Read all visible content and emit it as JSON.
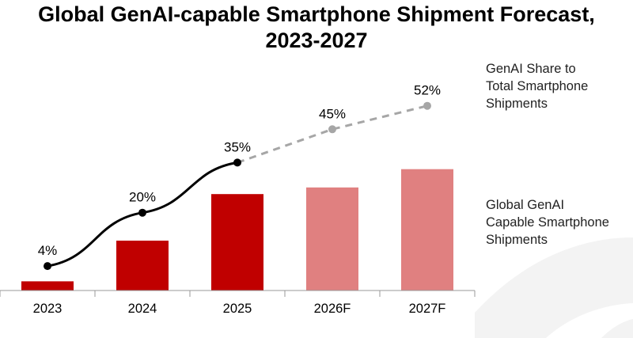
{
  "chart_data": {
    "type": "bar+line",
    "title_line1": "Global GenAI-capable Smartphone Shipment Forecast,",
    "title_line2": "2023-2027",
    "categories": [
      "2023",
      "2024",
      "2025",
      "2026F",
      "2027F"
    ],
    "bar_series": {
      "name": "Global GenAI Capable Smartphone Shipments",
      "values": [
        5.5,
        30,
        58,
        62,
        73
      ],
      "actual_color": "#c00000",
      "forecast_color": "#e08080",
      "forecast_from_index": 3
    },
    "line_series": {
      "name": "GenAI Share to Total Smartphone Shipments",
      "values": [
        4,
        20,
        35,
        45,
        52
      ],
      "labels": [
        "4%",
        "20%",
        "35%",
        "45%",
        "52%"
      ],
      "actual_color": "#000000",
      "forecast_color": "#a6a6a6",
      "forecast_from_index": 3
    },
    "legend": {
      "line_label": [
        "GenAI Share to",
        "Total Smartphone",
        "Shipments"
      ],
      "bar_label": [
        "Global GenAI",
        "Capable Smartphone",
        "Shipments"
      ]
    },
    "legend_position": "right",
    "grid": false
  }
}
